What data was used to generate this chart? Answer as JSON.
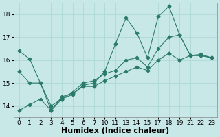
{
  "title": "",
  "xlabel": "Humidex (Indice chaleur)",
  "ylabel": "",
  "bg_color": "#c8e8e8",
  "grid_color": "#b0d8d8",
  "line_color": "#2a7a6a",
  "ylim": [
    13.5,
    18.5
  ],
  "yticks": [
    14,
    15,
    16,
    17,
    18
  ],
  "xtick_labels": [
    "0",
    "1",
    "2",
    "3",
    "4",
    "5",
    "6",
    "7",
    "10",
    "11",
    "13",
    "14",
    "15",
    "17",
    "18",
    "19",
    "21",
    "22",
    "23"
  ],
  "line1_y": [
    16.4,
    16.05,
    15.0,
    13.8,
    14.3,
    14.5,
    14.9,
    15.0,
    15.5,
    16.7,
    17.85,
    17.2,
    16.1,
    17.9,
    18.35,
    17.1,
    16.2,
    16.2,
    16.1
  ],
  "line2_y": [
    15.5,
    15.0,
    15.0,
    14.0,
    14.3,
    14.6,
    15.0,
    15.1,
    15.4,
    15.55,
    16.0,
    16.1,
    15.7,
    16.5,
    17.0,
    17.1,
    16.2,
    16.2,
    16.1
  ],
  "line3_y": [
    13.8,
    14.05,
    14.3,
    13.8,
    14.4,
    14.55,
    14.85,
    14.85,
    15.1,
    15.3,
    15.5,
    15.7,
    15.55,
    16.0,
    16.3,
    16.0,
    16.2,
    16.25,
    16.1
  ],
  "marker": "D",
  "markersize": 2.5,
  "linewidth": 0.8,
  "xlabel_fontsize": 8,
  "tick_fontsize": 6.5
}
